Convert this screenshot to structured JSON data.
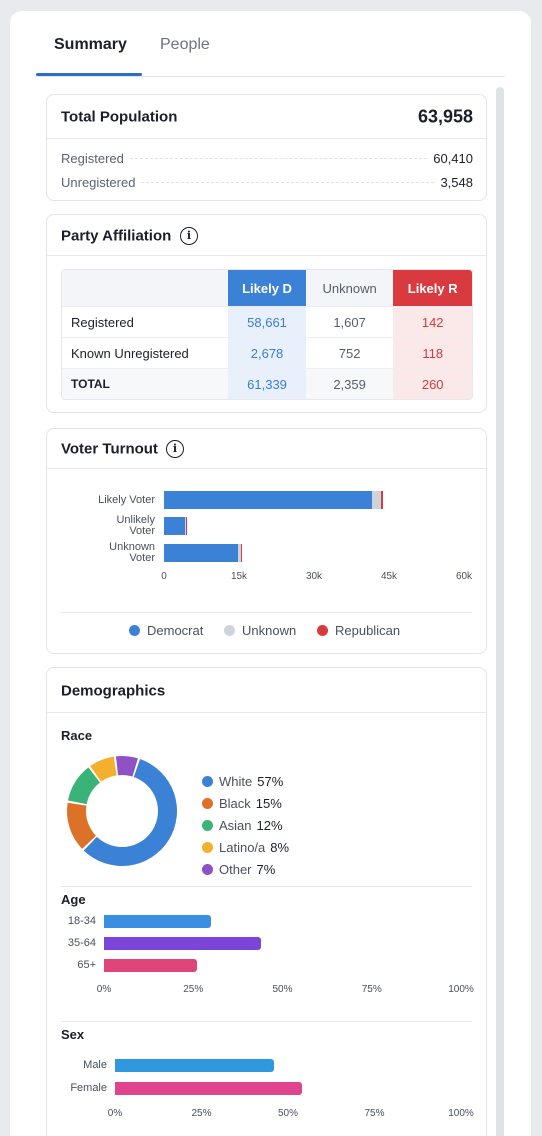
{
  "tabs": [
    {
      "label": "Summary",
      "active": true
    },
    {
      "label": "People",
      "active": false
    }
  ],
  "population": {
    "title": "Total Population",
    "total": "63,958",
    "rows": [
      {
        "label": "Registered",
        "value": "60,410"
      },
      {
        "label": "Unregistered",
        "value": "3,548"
      }
    ]
  },
  "party": {
    "title": "Party Affiliation",
    "info_icon": "info-icon",
    "columns": [
      "Likely D",
      "Unknown",
      "Likely R"
    ],
    "rows": [
      {
        "label": "Registered",
        "d": "58,661",
        "u": "1,607",
        "r": "142"
      },
      {
        "label": "Known Unregistered",
        "d": "2,678",
        "u": "752",
        "r": "118"
      },
      {
        "label": "TOTAL",
        "d": "61,339",
        "u": "2,359",
        "r": "260"
      }
    ]
  },
  "turnout": {
    "title": "Voter Turnout",
    "info_icon": "info-icon",
    "legend": [
      "Democrat",
      "Unknown",
      "Republican"
    ]
  },
  "demographics": {
    "title": "Demographics",
    "race_title": "Race",
    "race": [
      {
        "label": "White",
        "pct": "57%"
      },
      {
        "label": "Black",
        "pct": "15%"
      },
      {
        "label": "Asian",
        "pct": "12%"
      },
      {
        "label": "Latino/a",
        "pct": "8%"
      },
      {
        "label": "Other",
        "pct": "7%"
      }
    ],
    "age_title": "Age",
    "sex_title": "Sex"
  },
  "colors": {
    "accent": "#2b6fc4",
    "democrat": "#3b82d6",
    "unknown": "#cfd3da",
    "republican": "#d83a3f",
    "white": "#3b82d6",
    "black": "#de7128",
    "asian": "#3bb378",
    "latino": "#f2b02c",
    "other": "#8e52c6",
    "age_18_34": "#3b8fe0",
    "age_35_64": "#7b45d9",
    "age_65": "#e0457a",
    "male": "#3098dc",
    "female": "#e0448d"
  },
  "chart_data": [
    {
      "type": "bar",
      "orientation": "horizontal",
      "stacked": true,
      "categories": [
        "Likely Voter",
        "Unlikely Voter",
        "Unknown Voter"
      ],
      "series": [
        {
          "name": "Democrat",
          "values": [
            41500,
            4200,
            14800
          ]
        },
        {
          "name": "Unknown",
          "values": [
            1900,
            200,
            500
          ]
        },
        {
          "name": "Republican",
          "values": [
            300,
            60,
            40
          ]
        }
      ],
      "xlim": [
        0,
        60000
      ],
      "xticks": [
        "0",
        "15k",
        "30k",
        "45k",
        "60k"
      ],
      "legend": "bottom"
    },
    {
      "type": "pie",
      "donut": true,
      "labels": [
        "White",
        "Black",
        "Asian",
        "Latino/a",
        "Other"
      ],
      "values": [
        57,
        15,
        12,
        8,
        7
      ]
    },
    {
      "type": "bar",
      "orientation": "horizontal",
      "categories": [
        "18-34",
        "35-64",
        "65+"
      ],
      "values": [
        30,
        44,
        26
      ],
      "xlim": [
        0,
        100
      ],
      "xticks": [
        "0%",
        "25%",
        "50%",
        "75%",
        "100%"
      ]
    },
    {
      "type": "bar",
      "orientation": "horizontal",
      "categories": [
        "Male",
        "Female"
      ],
      "values": [
        46,
        54
      ],
      "xlim": [
        0,
        100
      ],
      "xticks": [
        "0%",
        "25%",
        "50%",
        "75%",
        "100%"
      ]
    }
  ]
}
